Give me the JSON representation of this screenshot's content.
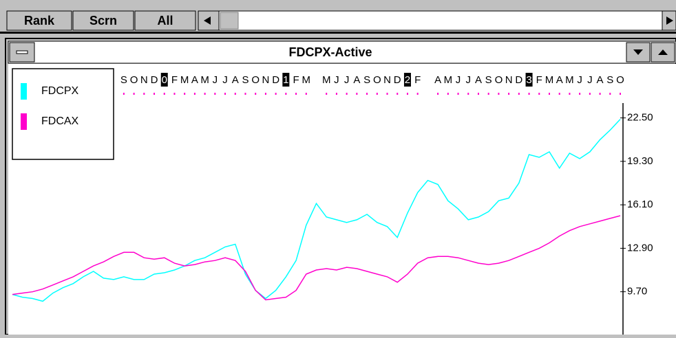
{
  "toolbar": {
    "buttons": [
      "Rank",
      "Scrn",
      "All"
    ]
  },
  "window": {
    "title": "FDCPX-Active"
  },
  "chart_data": {
    "type": "line",
    "categories": [
      null,
      null,
      null,
      null,
      null,
      null,
      null,
      null,
      null,
      null,
      null,
      "S",
      "O",
      "N",
      "D",
      "0",
      "F",
      "M",
      "A",
      "M",
      "J",
      "J",
      "A",
      "S",
      "O",
      "N",
      "D",
      "1",
      "F",
      "M",
      null,
      "M",
      "J",
      "J",
      "A",
      "S",
      "O",
      "N",
      "D",
      "2",
      "F",
      null,
      "A",
      "M",
      "J",
      "J",
      "A",
      "S",
      "O",
      "N",
      "D",
      "3",
      "F",
      "M",
      "A",
      "M",
      "J",
      "J",
      "A",
      "S",
      "O"
    ],
    "series": [
      {
        "name": "FDCPX",
        "color": "#00ffff",
        "values": [
          9.5,
          9.3,
          9.2,
          9.0,
          9.6,
          10.0,
          10.3,
          10.8,
          11.2,
          10.7,
          10.6,
          10.8,
          10.6,
          10.6,
          11.0,
          11.1,
          11.3,
          11.6,
          12.0,
          12.2,
          12.6,
          13.0,
          13.2,
          11.0,
          9.8,
          9.2,
          9.8,
          10.8,
          12.0,
          14.6,
          16.2,
          15.2,
          15.0,
          14.8,
          15.0,
          15.4,
          14.8,
          14.5,
          13.7,
          15.5,
          17.0,
          17.9,
          17.6,
          16.4,
          15.8,
          15.0,
          15.2,
          15.6,
          16.4,
          16.6,
          17.7,
          19.8,
          19.6,
          20.0,
          18.8,
          19.9,
          19.5,
          20.0,
          20.9,
          21.6,
          22.4
        ]
      },
      {
        "name": "FDCAX",
        "color": "#ff00cc",
        "values": [
          9.5,
          9.6,
          9.7,
          9.9,
          10.2,
          10.5,
          10.8,
          11.2,
          11.6,
          11.9,
          12.3,
          12.6,
          12.6,
          12.2,
          12.1,
          12.2,
          11.8,
          11.6,
          11.7,
          11.9,
          12.0,
          12.2,
          12.0,
          11.2,
          9.8,
          9.1,
          9.2,
          9.3,
          9.8,
          11.0,
          11.3,
          11.4,
          11.3,
          11.5,
          11.4,
          11.2,
          11.0,
          10.8,
          10.4,
          11.0,
          11.8,
          12.2,
          12.3,
          12.3,
          12.2,
          12.0,
          11.8,
          11.7,
          11.8,
          12.0,
          12.3,
          12.6,
          12.9,
          13.3,
          13.8,
          14.2,
          14.5,
          14.7,
          14.9,
          15.1,
          15.3
        ]
      }
    ],
    "ylim": [
      6.9,
      24.1
    ],
    "yticks": [
      {
        "value": 9.7,
        "label": "9.70"
      },
      {
        "value": 12.9,
        "label": "12.90"
      },
      {
        "value": 16.1,
        "label": "16.10"
      },
      {
        "value": 19.3,
        "label": "19.30"
      },
      {
        "value": 22.5,
        "label": "22.50"
      }
    ]
  }
}
